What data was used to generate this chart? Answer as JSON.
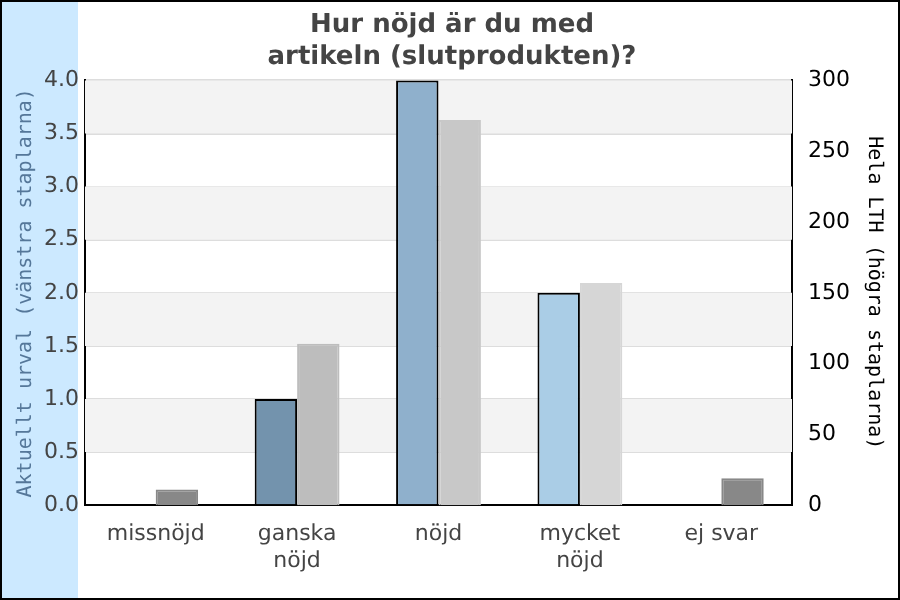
{
  "chart_data": {
    "type": "bar",
    "title": "Hur nöjd är du med\nartikeln (slutprodukten)?",
    "ylabel": "Aktuellt urval (vänstra staplarna)",
    "y2label": "Hela LTH (högra staplarna)",
    "categories": [
      "missnöjd",
      "ganska nöjd",
      "nöjd",
      "mycket nöjd",
      "ej svar"
    ],
    "series": [
      {
        "colors": [
          "#7393ad",
          "#7393ad",
          "#8fb0cc",
          "#aacde6",
          "#7393ad"
        ],
        "values": [
          0,
          1,
          4,
          2,
          0
        ]
      },
      {
        "colors": [
          "#888888",
          "#bdbdbd",
          "#c8c8c8",
          "#d6d6d6",
          "#888888"
        ],
        "values": [
          11,
          114,
          272,
          157,
          19
        ],
        "axis": "y2"
      }
    ],
    "ylim": [
      0,
      4
    ],
    "yticks": [
      {
        "value": 0,
        "label": "0.0"
      },
      {
        "value": 0.5,
        "label": "0.5"
      },
      {
        "value": 1,
        "label": "1.0"
      },
      {
        "value": 1.5,
        "label": "1.5"
      },
      {
        "value": 2,
        "label": "2.0"
      },
      {
        "value": 2.5,
        "label": "2.5"
      },
      {
        "value": 3,
        "label": "3.0"
      },
      {
        "value": 3.5,
        "label": "3.5"
      },
      {
        "value": 4,
        "label": "4.0"
      }
    ],
    "y2lim": [
      0,
      300
    ],
    "y2ticks": [
      0,
      50,
      100,
      150,
      200,
      250,
      300
    ],
    "grid": "y",
    "legend": false
  }
}
